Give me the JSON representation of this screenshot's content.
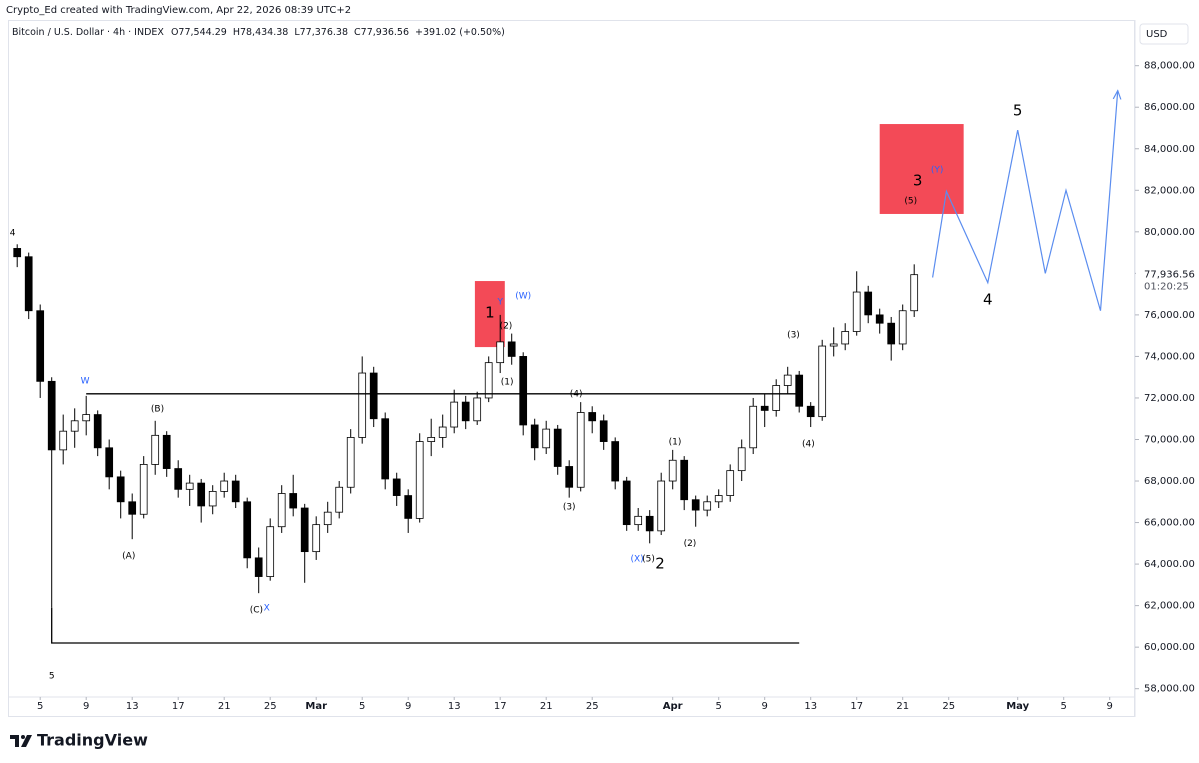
{
  "header": {
    "credit": "Crypto_Ed created with TradingView.com, Apr 22, 2026 08:39 UTC+2",
    "currency": "USD"
  },
  "legend_header": {
    "symbol": "Bitcoin / U.S. Dollar · 4h · INDEX",
    "open": "O77,544.29",
    "high": "H78,434.38",
    "low": "L77,376.38",
    "close": "C77,936.56",
    "change": "+391.02 (+0.50%)"
  },
  "footer": {
    "brand": "TradingView"
  },
  "chart_data": {
    "type": "candlestick",
    "up_color": "#ffffff",
    "down_color": "#000000",
    "grid": false,
    "xlim": [
      2.2,
      100.2
    ],
    "ylim": [
      57600,
      90200
    ],
    "xticks": [
      5,
      9,
      13,
      17,
      21,
      25,
      {
        "value": 29,
        "label": "Mar"
      },
      {
        "value": 33,
        "label": "5"
      },
      {
        "value": 37,
        "label": "9"
      },
      {
        "value": 41,
        "label": "13"
      },
      {
        "value": 45,
        "label": "17"
      },
      {
        "value": 49,
        "label": "21"
      },
      {
        "value": 53,
        "label": "25"
      },
      {
        "value": 60,
        "label": "Apr"
      },
      {
        "value": 64,
        "label": "5"
      },
      {
        "value": 68,
        "label": "9"
      },
      {
        "value": 72,
        "label": "13"
      },
      {
        "value": 76,
        "label": "17"
      },
      {
        "value": 80,
        "label": "21"
      },
      {
        "value": 84,
        "label": "25"
      },
      {
        "value": 90,
        "label": "May"
      },
      {
        "value": 94,
        "label": "5"
      },
      {
        "value": 98,
        "label": "9"
      }
    ],
    "yticks": [
      {
        "value": 58000,
        "label": "58,000.00"
      },
      {
        "value": 60000,
        "label": "60,000.00"
      },
      {
        "value": 62000,
        "label": "62,000.00"
      },
      {
        "value": 64000,
        "label": "64,000.00"
      },
      {
        "value": 66000,
        "label": "66,000.00"
      },
      {
        "value": 68000,
        "label": "68,000.00"
      },
      {
        "value": 70000,
        "label": "70,000.00"
      },
      {
        "value": 72000,
        "label": "72,000.00"
      },
      {
        "value": 74000,
        "label": "74,000.00"
      },
      {
        "value": 76000,
        "label": "76,000.00"
      },
      {
        "value": 78000,
        "label": "78,000.00"
      },
      {
        "value": 80000,
        "label": "80,000.00"
      },
      {
        "value": 82000,
        "label": "82,000.00"
      },
      {
        "value": 84000,
        "label": "84,000.00"
      },
      {
        "value": 86000,
        "label": "86,000.00"
      },
      {
        "value": 88000,
        "label": "88,000.00"
      }
    ],
    "x": [
      3,
      4,
      5,
      6,
      7,
      8,
      9,
      10,
      11,
      12,
      13,
      14,
      15,
      16,
      17,
      18,
      19,
      20,
      21,
      22,
      23,
      24,
      25,
      26,
      27,
      28,
      29,
      30,
      31,
      32,
      33,
      34,
      35,
      36,
      37,
      38,
      39,
      40,
      41,
      42,
      43,
      44,
      45,
      46,
      47,
      48,
      49,
      50,
      51,
      52,
      53,
      54,
      55,
      56,
      57,
      58,
      59,
      60,
      61,
      62,
      63,
      64,
      65,
      66,
      67,
      68,
      69,
      70,
      71,
      72,
      73,
      74,
      75,
      76,
      77,
      78,
      79,
      80,
      81
    ],
    "open": [
      79200,
      78800,
      76200,
      72800,
      69500,
      70400,
      70900,
      71200,
      69600,
      68200,
      67000,
      66400,
      68800,
      70200,
      68600,
      67600,
      67900,
      66800,
      67500,
      68000,
      67000,
      64300,
      63400,
      65800,
      67400,
      66700,
      64600,
      65900,
      66500,
      67700,
      70100,
      73200,
      71000,
      68100,
      67300,
      66200,
      69900,
      70100,
      70600,
      71800,
      70900,
      72000,
      73700,
      74700,
      74000,
      70700,
      69600,
      70500,
      68700,
      67700,
      71300,
      70900,
      69900,
      68000,
      65900,
      66300,
      65600,
      68000,
      69000,
      67100,
      66600,
      67000,
      67300,
      68500,
      69600,
      71600,
      71400,
      72600,
      73100,
      71600,
      71100,
      74500,
      74600,
      75200,
      77100,
      76000,
      75600,
      74600,
      76200
    ],
    "high": [
      79400,
      79000,
      76500,
      73000,
      71200,
      71500,
      72100,
      71400,
      70000,
      68500,
      67400,
      69200,
      70900,
      70400,
      69000,
      68300,
      68100,
      67800,
      68400,
      68300,
      67200,
      64800,
      66200,
      67800,
      68300,
      66900,
      66300,
      67000,
      68000,
      70500,
      74000,
      73500,
      71300,
      68400,
      67600,
      70300,
      71000,
      71200,
      72400,
      72100,
      72300,
      74000,
      76000,
      75100,
      74200,
      71000,
      70900,
      70700,
      69000,
      71800,
      71600,
      71200,
      70100,
      68200,
      66700,
      66600,
      68400,
      69500,
      69200,
      67300,
      67300,
      67600,
      68800,
      70000,
      72000,
      72200,
      72900,
      73500,
      73300,
      71800,
      74800,
      75400,
      75600,
      78100,
      77400,
      76300,
      75900,
      76500,
      78434.38
    ],
    "low": [
      78300,
      75800,
      72000,
      61900,
      68800,
      69600,
      70200,
      69200,
      67600,
      66200,
      65200,
      66200,
      68300,
      68200,
      67200,
      66800,
      66000,
      66400,
      67200,
      66700,
      63800,
      62600,
      63200,
      65500,
      66300,
      63100,
      64200,
      65500,
      66200,
      67400,
      69800,
      70600,
      67600,
      66800,
      65500,
      66000,
      69200,
      69600,
      70300,
      70500,
      70700,
      71800,
      73200,
      73600,
      70200,
      69000,
      69300,
      68300,
      67200,
      67500,
      70300,
      69500,
      67600,
      65600,
      65600,
      65000,
      65400,
      67600,
      66600,
      65800,
      66300,
      66700,
      67000,
      68000,
      69300,
      70600,
      71100,
      72200,
      71300,
      70600,
      70900,
      74000,
      74300,
      75000,
      75600,
      75100,
      73800,
      74300,
      75900
    ],
    "close": [
      78800,
      76200,
      72800,
      69500,
      70400,
      70900,
      71200,
      69600,
      68200,
      67000,
      66400,
      68800,
      70200,
      68600,
      67600,
      67900,
      66800,
      67500,
      68000,
      67000,
      64300,
      63400,
      65800,
      67400,
      66700,
      64600,
      65900,
      66500,
      67700,
      70100,
      73200,
      71000,
      68100,
      67300,
      66200,
      69900,
      70100,
      70600,
      71800,
      70900,
      72000,
      73700,
      74700,
      74000,
      70700,
      69600,
      70500,
      68700,
      67700,
      71300,
      70900,
      69900,
      68000,
      65900,
      66300,
      65600,
      68000,
      69000,
      67100,
      66600,
      67000,
      67300,
      68500,
      69600,
      71600,
      71400,
      72600,
      73100,
      71600,
      71100,
      74500,
      74600,
      75200,
      77100,
      76000,
      75600,
      74600,
      76200,
      77936.56
    ],
    "last_price": {
      "value_label": "77,936.56",
      "countdown": "01:20:25"
    },
    "trendlines": [
      {
        "color": "#000000",
        "points": [
          [
            9,
            72200
          ],
          [
            71,
            72200
          ]
        ]
      },
      {
        "color": "#000000",
        "points": [
          [
            6,
            61900
          ],
          [
            6,
            60200
          ],
          [
            71,
            60200
          ]
        ]
      }
    ],
    "projection": {
      "color": "#5b8def",
      "points": [
        [
          82.6,
          77800
        ],
        [
          83.8,
          81950
        ],
        [
          87.4,
          77550
        ],
        [
          90,
          84900
        ],
        [
          92.4,
          78000
        ],
        [
          94.2,
          82000
        ],
        [
          97.2,
          76200
        ],
        [
          98.7,
          86800
        ]
      ]
    },
    "boxes": [
      {
        "color": "#f23645",
        "x": [
          42.8,
          45.4
        ],
        "y": [
          74450,
          77630
        ]
      },
      {
        "color": "#f23645",
        "x": [
          78,
          85.3
        ],
        "y": [
          80860,
          85190
        ]
      }
    ],
    "annotations": [
      {
        "text": "4",
        "x": 2.6,
        "y": 79950,
        "color": "#000000",
        "size": 9
      },
      {
        "text": "5",
        "x": 6,
        "y": 58600,
        "color": "#000000",
        "size": 9
      },
      {
        "text": "W",
        "x": 8.9,
        "y": 72820,
        "color": "#2962ff",
        "size": 9
      },
      {
        "text": "(B)",
        "x": 15.2,
        "y": 71470,
        "color": "#000000",
        "size": 9
      },
      {
        "text": "(A)",
        "x": 12.7,
        "y": 64400,
        "color": "#000000",
        "size": 9
      },
      {
        "text": "(C)",
        "x": 23.8,
        "y": 61790,
        "color": "#000000",
        "size": 9
      },
      {
        "text": "X",
        "x": 24.7,
        "y": 61890,
        "color": "#2962ff",
        "size": 9
      },
      {
        "text": "1",
        "x": 44.1,
        "y": 76090,
        "color": "#000000",
        "size": 15
      },
      {
        "text": "Y",
        "x": 45,
        "y": 76620,
        "color": "#2962ff",
        "size": 9
      },
      {
        "text": "(W)",
        "x": 47,
        "y": 76910,
        "color": "#2962ff",
        "size": 9
      },
      {
        "text": "(2)",
        "x": 45.5,
        "y": 75470,
        "color": "#000000",
        "size": 9
      },
      {
        "text": "(1)",
        "x": 45.6,
        "y": 72770,
        "color": "#000000",
        "size": 9
      },
      {
        "text": "(4)",
        "x": 51.6,
        "y": 72190,
        "color": "#000000",
        "size": 9
      },
      {
        "text": "(3)",
        "x": 51,
        "y": 66750,
        "color": "#000000",
        "size": 9
      },
      {
        "text": "(X)",
        "x": 56.9,
        "y": 64250,
        "color": "#2962ff",
        "size": 9
      },
      {
        "text": "(5)",
        "x": 57.9,
        "y": 64250,
        "color": "#000000",
        "size": 9
      },
      {
        "text": "2",
        "x": 58.9,
        "y": 64000,
        "color": "#000000",
        "size": 15
      },
      {
        "text": "(1)",
        "x": 60.2,
        "y": 69880,
        "color": "#000000",
        "size": 9
      },
      {
        "text": "(2)",
        "x": 61.5,
        "y": 65000,
        "color": "#000000",
        "size": 9
      },
      {
        "text": "(3)",
        "x": 70.5,
        "y": 75040,
        "color": "#000000",
        "size": 9
      },
      {
        "text": "(4)",
        "x": 71.8,
        "y": 69790,
        "color": "#000000",
        "size": 9
      },
      {
        "text": "3",
        "x": 81.3,
        "y": 82450,
        "color": "#000000",
        "size": 15
      },
      {
        "text": "(Y)",
        "x": 83,
        "y": 82980,
        "color": "#2962ff",
        "size": 9
      },
      {
        "text": "(5)",
        "x": 80.7,
        "y": 81480,
        "color": "#000000",
        "size": 9
      },
      {
        "text": "5",
        "x": 90,
        "y": 85820,
        "color": "#000000",
        "size": 15
      },
      {
        "text": "4",
        "x": 87.4,
        "y": 76720,
        "color": "#000000",
        "size": 15
      }
    ]
  }
}
